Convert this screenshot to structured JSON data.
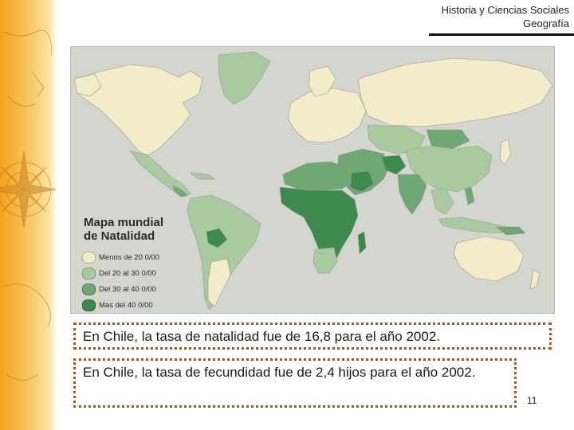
{
  "header": {
    "line1": "Historia y Ciencias Sociales",
    "line2": "Geografía"
  },
  "map": {
    "title_line1": "Mapa mundial",
    "title_line2": "de Natalidad",
    "legend": [
      {
        "label": "Menos de 20 0/00",
        "color": "#f2ecc9"
      },
      {
        "label": "Del 20 al 30 0/00",
        "color": "#a9c9a0"
      },
      {
        "label": "Del 30 al 40 0/00",
        "color": "#6fa874"
      },
      {
        "label": "Mas del 40 0/00",
        "color": "#3d8a4e"
      }
    ],
    "colors": {
      "ocean": "#d3d5cf",
      "low": "#f2ecc9",
      "medium_low": "#a9c9a0",
      "medium_high": "#6fa874",
      "high": "#3d8a4e"
    }
  },
  "notes": [
    "En Chile, la tasa de natalidad fue de 16,8 para el año 2002.",
    "En Chile, la tasa de fecundidad fue de 2,4 hijos para el año 2002."
  ],
  "page_number": "11"
}
